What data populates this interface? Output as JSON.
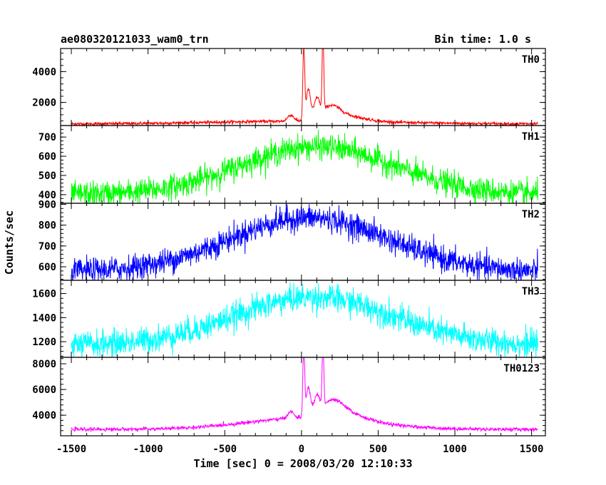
{
  "header": {
    "title": "ae080320121033_wam0_trn",
    "bin_time": "Bin time: 1.0 s"
  },
  "chart_data": {
    "type": "line",
    "xlabel": "Time [sec] 0 = 2008/03/20 12:10:33",
    "ylabel": "Counts/sec",
    "xlim": [
      -1570,
      1590
    ],
    "x_ticks": [
      -1500,
      -1000,
      -500,
      0,
      500,
      1000,
      1500
    ],
    "x_range": [
      -1500,
      1540
    ],
    "panels": [
      {
        "name": "TH0",
        "color": "#ff0000",
        "ylim": [
          500,
          5500
        ],
        "y_ticks": [
          2000,
          4000
        ],
        "baseline": 600,
        "noise": 50,
        "broad": [
          {
            "amp": 180,
            "center": 0,
            "width": 600
          }
        ],
        "peaks": [
          {
            "amp": 4700,
            "center": 15,
            "width": 6
          },
          {
            "amp": 2000,
            "center": 45,
            "width": 14
          },
          {
            "amp": 1200,
            "center": 100,
            "width": 18
          },
          {
            "amp": 5200,
            "center": 140,
            "width": 5
          },
          {
            "amp": 800,
            "center": 190,
            "width": 60
          },
          {
            "amp": 350,
            "center": 290,
            "width": 120
          },
          {
            "amp": 400,
            "center": -70,
            "width": 20
          }
        ]
      },
      {
        "name": "TH1",
        "color": "#00ff00",
        "ylim": [
          355,
          760
        ],
        "y_ticks": [
          400,
          500,
          600,
          700
        ],
        "baseline": 400,
        "noise": 32,
        "broad": [
          {
            "amp": 250,
            "center": 100,
            "width": 500
          }
        ],
        "peaks": []
      },
      {
        "name": "TH2",
        "color": "#0000ff",
        "ylim": [
          535,
          905
        ],
        "y_ticks": [
          600,
          700,
          800,
          900
        ],
        "baseline": 575,
        "noise": 30,
        "broad": [
          {
            "amp": 260,
            "center": 50,
            "width": 520
          }
        ],
        "peaks": []
      },
      {
        "name": "TH3",
        "color": "#00ffff",
        "ylim": [
          1070,
          1710
        ],
        "y_ticks": [
          1200,
          1400,
          1600
        ],
        "baseline": 1170,
        "noise": 55,
        "broad": [
          {
            "amp": 400,
            "center": 80,
            "width": 520
          }
        ],
        "peaks": []
      },
      {
        "name": "TH0123",
        "color": "#ff00ff",
        "ylim": [
          2400,
          8500
        ],
        "y_ticks": [
          4000,
          6000,
          8000
        ],
        "baseline": 2900,
        "noise": 70,
        "broad": [
          {
            "amp": 900,
            "center": 50,
            "width": 400
          }
        ],
        "peaks": [
          {
            "amp": 5400,
            "center": 15,
            "width": 6
          },
          {
            "amp": 2200,
            "center": 45,
            "width": 14
          },
          {
            "amp": 1300,
            "center": 100,
            "width": 18
          },
          {
            "amp": 5400,
            "center": 140,
            "width": 5
          },
          {
            "amp": 1100,
            "center": 200,
            "width": 70
          },
          {
            "amp": 500,
            "center": 300,
            "width": 120
          },
          {
            "amp": 500,
            "center": -70,
            "width": 20
          }
        ]
      }
    ]
  }
}
